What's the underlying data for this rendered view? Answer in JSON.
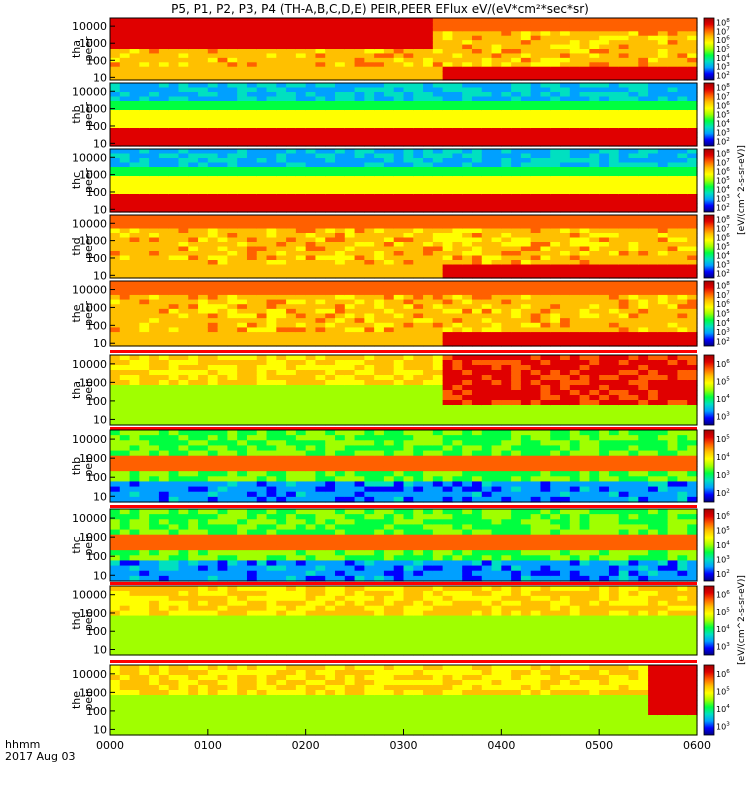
{
  "title": "P5, P1, P2, P3, P4 (TH-A,B,C,D,E) PEIR,PEER EFlux eV/(eV*cm^2*sec*sr)",
  "date_label": {
    "hhmm": "hhmm",
    "date": "2017 Aug 03"
  },
  "colorbar_unit_labels": {
    "peer": "[eV/(cm^2-s-sr-eV)]",
    "peir": "[eV/(cm^2-s-sr-eV)]"
  },
  "colorbar_ticks": {
    "peer": [
      "10^2",
      "10^3",
      "10^4",
      "10^5",
      "10^6",
      "10^7",
      "10^8"
    ],
    "peir_a": [
      "10^3",
      "10^4",
      "10^5",
      "10^6"
    ],
    "peir_b": [
      "10^2",
      "10^3",
      "10^4",
      "10^5"
    ],
    "peir_c": [
      "10^2",
      "10^3",
      "10^4",
      "10^5",
      "10^6"
    ],
    "peir_d": [
      "10^3",
      "10^4",
      "10^5",
      "10^6"
    ],
    "peir_e": [
      "10^3",
      "10^4",
      "10^5",
      "10^6"
    ]
  },
  "colors": {
    "scale": [
      "#000080",
      "#0000ff",
      "#00a0ff",
      "#00e0c0",
      "#00ff40",
      "#a0ff00",
      "#ffff00",
      "#ffc000",
      "#ff6000",
      "#e00000",
      "#a00000"
    ],
    "status_bar": "#ff0000",
    "axes": "#000000"
  },
  "chart_data": {
    "type": "heatmap",
    "x_axis": {
      "label": "hhmm",
      "ticks": [
        "0000",
        "0100",
        "0200",
        "0300",
        "0400",
        "0500",
        "0600"
      ],
      "range": [
        "0000",
        "0600"
      ]
    },
    "y_axis_scale": "log",
    "y_ticks": [
      "10",
      "100",
      "1000",
      "10000"
    ],
    "panels": [
      {
        "probe": "tha",
        "species": "peer",
        "label": [
          "tha",
          "peer"
        ],
        "y_range": [
          7,
          30000
        ],
        "cbar": "peer"
      },
      {
        "probe": "thb",
        "species": "peer",
        "label": [
          "thb",
          "peer"
        ],
        "y_range": [
          7,
          30000
        ],
        "cbar": "peer"
      },
      {
        "probe": "thc",
        "species": "peer",
        "label": [
          "thc",
          "peer"
        ],
        "y_range": [
          7,
          30000
        ],
        "cbar": "peer"
      },
      {
        "probe": "thd",
        "species": "peer",
        "label": [
          "thd",
          "peer"
        ],
        "y_range": [
          7,
          30000
        ],
        "cbar": "peer"
      },
      {
        "probe": "the",
        "species": "peer",
        "label": [
          "the",
          "peer"
        ],
        "y_range": [
          7,
          30000
        ],
        "cbar": "peer"
      },
      {
        "probe": "tha",
        "species": "peir",
        "label": [
          "tha",
          "peir"
        ],
        "y_range": [
          5,
          30000
        ],
        "cbar": "peir_a"
      },
      {
        "probe": "thb",
        "species": "peir",
        "label": [
          "thb",
          "peir"
        ],
        "y_range": [
          5,
          30000
        ],
        "cbar": "peir_b"
      },
      {
        "probe": "thc",
        "species": "peir",
        "label": [
          "thc",
          "peir"
        ],
        "y_range": [
          5,
          30000
        ],
        "cbar": "peir_c"
      },
      {
        "probe": "thd",
        "species": "peir",
        "label": [
          "thd",
          "peir"
        ],
        "y_range": [
          5,
          30000
        ],
        "cbar": "peir_d"
      },
      {
        "probe": "the",
        "species": "peir",
        "label": [
          "the",
          "peir"
        ],
        "y_range": [
          5,
          30000
        ],
        "cbar": "peir_e"
      }
    ]
  }
}
